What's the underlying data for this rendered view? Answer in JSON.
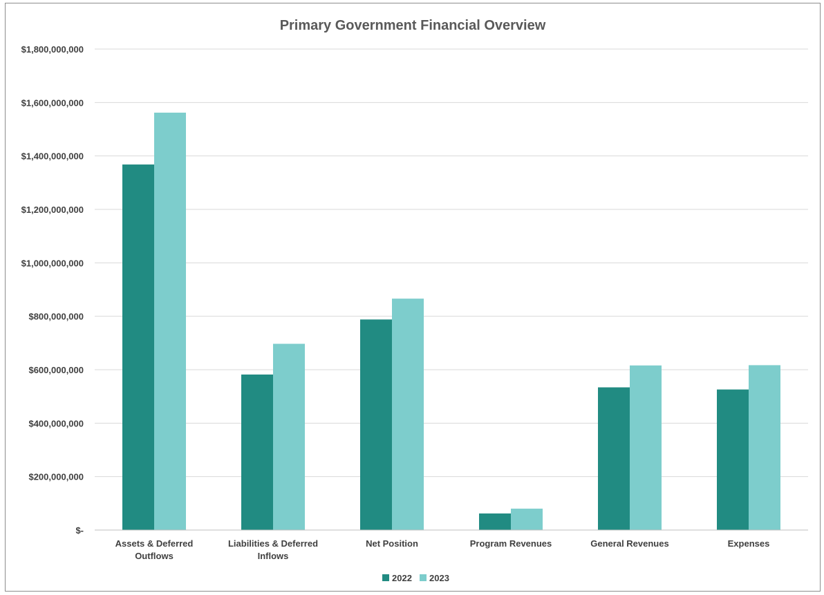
{
  "chart_data": {
    "type": "bar",
    "title": "Primary Government Financial Overview",
    "xlabel": "",
    "ylabel": "",
    "categories": [
      [
        "Assets & Deferred",
        "Outflows"
      ],
      [
        "Liabilities & Deferred",
        "Inflows"
      ],
      [
        "Net Position"
      ],
      [
        "Program Revenues"
      ],
      [
        "General Revenues"
      ],
      [
        "Expenses"
      ]
    ],
    "series": [
      {
        "name": "2022",
        "color": "#218b82",
        "values": [
          1368000000,
          582000000,
          788000000,
          62000000,
          534000000,
          526000000
        ]
      },
      {
        "name": "2023",
        "color": "#7dcdcc",
        "values": [
          1562000000,
          697000000,
          866000000,
          80000000,
          616000000,
          617000000
        ]
      }
    ],
    "ylim": [
      0,
      1800000000
    ],
    "y_ticks": [
      {
        "value": 0,
        "label": "$-"
      },
      {
        "value": 200000000,
        "label": "$200,000,000"
      },
      {
        "value": 400000000,
        "label": "$400,000,000"
      },
      {
        "value": 600000000,
        "label": "$600,000,000"
      },
      {
        "value": 800000000,
        "label": "$800,000,000"
      },
      {
        "value": 1000000000,
        "label": "$1,000,000,000"
      },
      {
        "value": 1200000000,
        "label": "$1,200,000,000"
      },
      {
        "value": 1400000000,
        "label": "$1,400,000,000"
      },
      {
        "value": 1600000000,
        "label": "$1,600,000,000"
      },
      {
        "value": 1800000000,
        "label": "$1,800,000,000"
      }
    ],
    "grid": true,
    "legend_position": "bottom"
  }
}
